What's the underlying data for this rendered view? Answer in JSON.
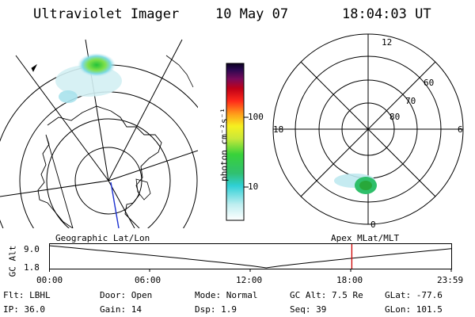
{
  "header": {
    "instrument": "Ultraviolet Imager",
    "date": "10 May 07",
    "time": "18:04:03 UT"
  },
  "colorbar": {
    "label": "photon cm⁻²s⁻¹",
    "ticks": [
      "100",
      "10"
    ]
  },
  "polar_plot": {
    "mlt_labels": {
      "top": "12",
      "left": "18",
      "right": "6",
      "bottom": "0"
    },
    "lat_labels": [
      "60",
      "70",
      "80"
    ]
  },
  "timeline": {
    "left_title": "Geographic Lat/Lon",
    "right_title": "Apex MLat/MLT",
    "ylabel": "GC Alt",
    "y_ticks": [
      "9.0",
      "1.8"
    ],
    "x_ticks": [
      "00:00",
      "06:00",
      "12:00",
      "18:00",
      "23:59"
    ],
    "marker_time": "18:04",
    "line_color": "#000000",
    "marker_color": "#cc0000"
  },
  "status": {
    "row1": [
      {
        "label": "Flt:",
        "value": "LBHL"
      },
      {
        "label": "Door:",
        "value": "Open"
      },
      {
        "label": "Mode:",
        "value": "Normal"
      },
      {
        "label": "GC Alt:",
        "value": "7.5 Re"
      },
      {
        "label": "GLat:",
        "value": "-77.6"
      }
    ],
    "row2": [
      {
        "label": "IP:",
        "value": "36.0"
      },
      {
        "label": "Gain:",
        "value": "14"
      },
      {
        "label": "Dsp:",
        "value": "1.9"
      },
      {
        "label": "Seq:",
        "value": "39"
      },
      {
        "label": "GLon:",
        "value": "101.5"
      }
    ]
  }
}
